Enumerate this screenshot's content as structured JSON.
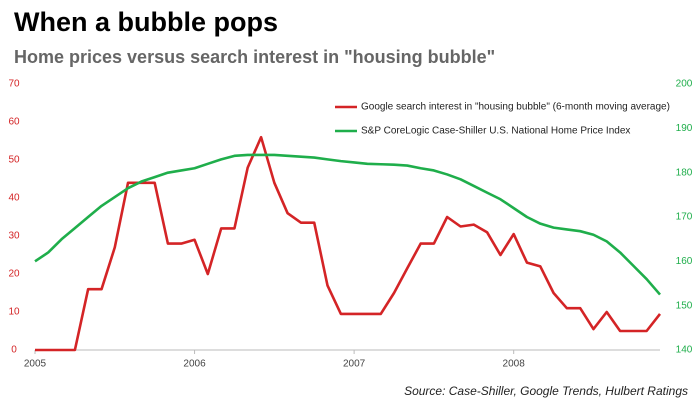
{
  "chart_data": {
    "type": "line",
    "title": "When a bubble pops",
    "subtitle": "Home prices versus search interest in \"housing bubble\"",
    "source": "Source: Case-Shiller, Google Trends, Hulbert Ratings",
    "x": [
      2005,
      2005.083,
      2005.167,
      2005.25,
      2005.333,
      2005.417,
      2005.5,
      2005.583,
      2005.667,
      2005.75,
      2005.833,
      2005.917,
      2006,
      2006.083,
      2006.167,
      2006.25,
      2006.333,
      2006.417,
      2006.5,
      2006.583,
      2006.667,
      2006.75,
      2006.833,
      2006.917,
      2007,
      2007.083,
      2007.167,
      2007.25,
      2007.333,
      2007.417,
      2007.5,
      2007.583,
      2007.667,
      2007.75,
      2007.833,
      2007.917,
      2008,
      2008.083,
      2008.167,
      2008.25,
      2008.333,
      2008.417,
      2008.5,
      2008.583,
      2008.667,
      2008.75,
      2008.833,
      2008.917
    ],
    "xlim": [
      2005,
      2008.917
    ],
    "xticks": [
      2005,
      2006,
      2007,
      2008
    ],
    "ylim": [
      0,
      70
    ],
    "yticks": [
      0,
      10,
      20,
      30,
      40,
      50,
      60,
      70
    ],
    "y2lim": [
      140,
      200
    ],
    "y2ticks": [
      140,
      150,
      160,
      170,
      180,
      190,
      200
    ],
    "legend": "upper right",
    "series": [
      {
        "name": "Google search interest in \"housing bubble\" (6-month moving average)",
        "color": "#d42426",
        "values": [
          0,
          0,
          0,
          0,
          16,
          16,
          27,
          44,
          44,
          44,
          28,
          28,
          29,
          20,
          32,
          32,
          48,
          56,
          44,
          36,
          33.5,
          33.5,
          17,
          9.5,
          9.5,
          9.5,
          9.5,
          15,
          21.5,
          28,
          28,
          35,
          32.5,
          33,
          31,
          25,
          30.5,
          23,
          22,
          15,
          11,
          11,
          5.5,
          10,
          5,
          5,
          5,
          9.5
        ]
      },
      {
        "name": "S&P CoreLogic Case-Shiller U.S. National Home Price Index",
        "color": "#1fae4b",
        "axis": "y2",
        "values": [
          160,
          162,
          165,
          167.5,
          170,
          172.5,
          174.5,
          176.5,
          178,
          179,
          180,
          180.5,
          181,
          182,
          183,
          183.8,
          184,
          184,
          184,
          183.8,
          183.6,
          183.4,
          183,
          182.6,
          182.3,
          182,
          181.9,
          181.8,
          181.6,
          181,
          180.5,
          179.6,
          178.5,
          177,
          175.5,
          174,
          172,
          170,
          168.5,
          167.6,
          167.2,
          166.8,
          166,
          164.5,
          162,
          159,
          156,
          152.5
        ]
      }
    ]
  }
}
